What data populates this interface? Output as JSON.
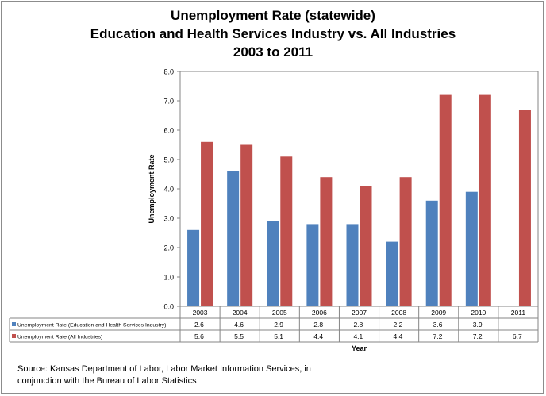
{
  "title": {
    "line1": "Unemployment Rate (statewide)",
    "line2": "Education and Health Services Industry vs. All Industries",
    "line3": "2003 to 2011"
  },
  "source": {
    "line1": "Source: Kansas Department of Labor, Labor Market Information Services, in",
    "line2": "conjunction with the Bureau of Labor Statistics"
  },
  "chart_data": {
    "type": "bar",
    "title": "Unemployment Rate (statewide) Education and Health Services Industry vs. All Industries 2003 to 2011",
    "xlabel": "Year",
    "ylabel": "Unemployment Rate",
    "ylim": [
      0,
      8
    ],
    "yticks": [
      "0.0",
      "1.0",
      "2.0",
      "3.0",
      "4.0",
      "5.0",
      "6.0",
      "7.0",
      "8.0"
    ],
    "categories": [
      "2003",
      "2004",
      "2005",
      "2006",
      "2007",
      "2008",
      "2009",
      "2010",
      "2011"
    ],
    "series": [
      {
        "name": "Unemployment Rate (Education and Health Services Industry)",
        "color": "#4f81bd",
        "values": [
          2.6,
          4.6,
          2.9,
          2.8,
          2.8,
          2.2,
          3.6,
          3.9,
          null
        ],
        "labels": [
          "2.6",
          "4.6",
          "2.9",
          "2.8",
          "2.8",
          "2.2",
          "3.6",
          "3.9",
          ""
        ]
      },
      {
        "name": "Unemployment Rate (All Industries)",
        "color": "#c0504d",
        "values": [
          5.6,
          5.5,
          5.1,
          4.4,
          4.1,
          4.4,
          7.2,
          7.2,
          6.7
        ],
        "labels": [
          "5.6",
          "5.5",
          "5.1",
          "4.4",
          "4.1",
          "4.4",
          "7.2",
          "7.2",
          "6.7"
        ]
      }
    ],
    "grid": false,
    "legend": "data-table"
  }
}
